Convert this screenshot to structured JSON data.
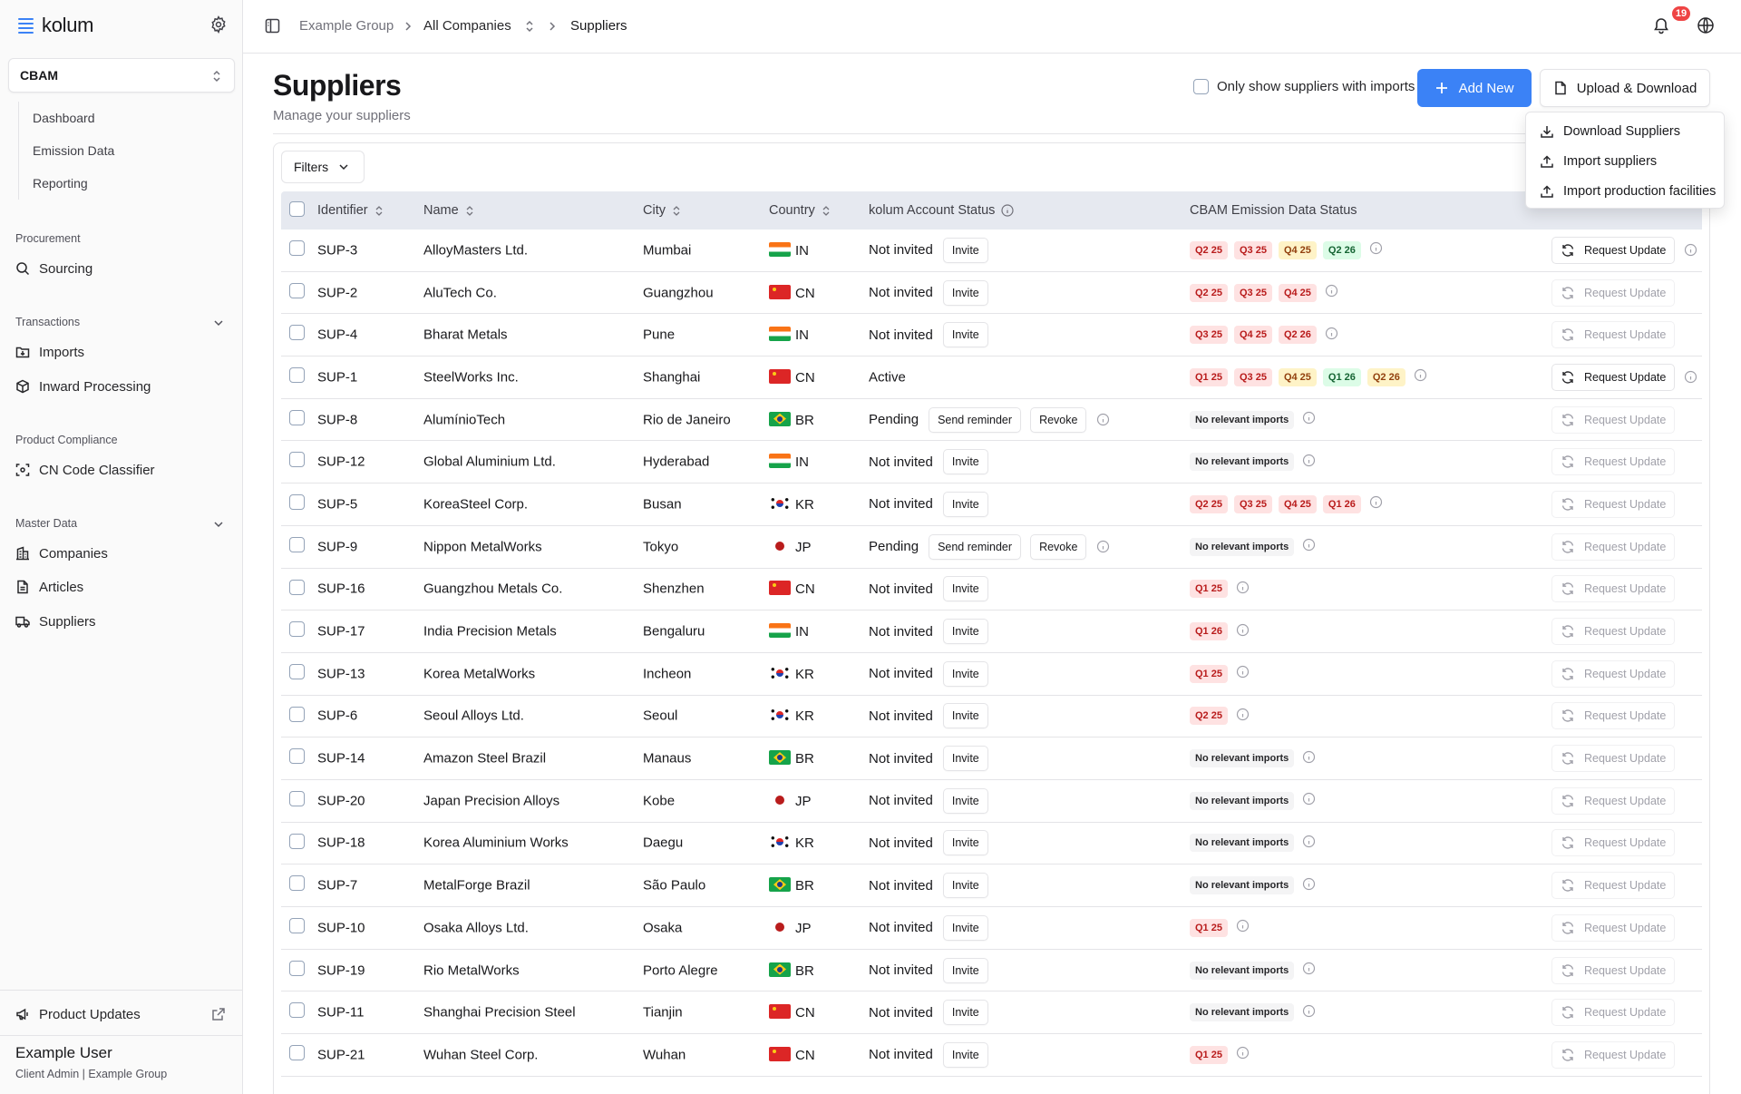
{
  "brand": "kolum",
  "module": "CBAM",
  "subnav": [
    "Dashboard",
    "Emission Data",
    "Reporting"
  ],
  "sections": {
    "procurement": {
      "label": "Procurement",
      "items": [
        "Sourcing"
      ]
    },
    "transactions": {
      "label": "Transactions",
      "items": [
        "Imports",
        "Inward Processing"
      ]
    },
    "product_compliance": {
      "label": "Product Compliance",
      "items": [
        "CN Code Classifier"
      ]
    },
    "master_data": {
      "label": "Master Data",
      "items": [
        "Companies",
        "Articles",
        "Suppliers"
      ]
    }
  },
  "product_updates": "Product Updates",
  "user": {
    "name": "Example User",
    "role": "Client Admin | Example Group"
  },
  "breadcrumb": [
    "Example Group",
    "All Companies",
    "Suppliers"
  ],
  "notifications": "19",
  "page": {
    "title": "Suppliers",
    "subtitle": "Manage your suppliers"
  },
  "only_imports_label": "Only show suppliers with imports",
  "add_new": "Add New",
  "upload_download": "Upload & Download",
  "dropdown": [
    "Download Suppliers",
    "Import suppliers",
    "Import production facilities"
  ],
  "filters": "Filters",
  "columns": {
    "identifier": "Identifier",
    "name": "Name",
    "city": "City",
    "country": "Country",
    "account": "kolum Account Status",
    "emission": "CBAM Emission Data Status"
  },
  "labels": {
    "invite": "Invite",
    "send_reminder": "Send reminder",
    "revoke": "Revoke",
    "request_update": "Request Update",
    "no_relevant": "No relevant imports"
  },
  "colors": {
    "primary": "#3b82f6",
    "badge": "#ef4444"
  },
  "rows": [
    {
      "id": "SUP-3",
      "name": "AlloyMasters Ltd.",
      "city": "Mumbai",
      "country": "IN",
      "status": "Not invited",
      "tags": [
        [
          "Q2 25",
          "red"
        ],
        [
          "Q3 25",
          "red"
        ],
        [
          "Q4 25",
          "yellow"
        ],
        [
          "Q2 26",
          "green"
        ]
      ],
      "req": true
    },
    {
      "id": "SUP-2",
      "name": "AluTech Co.",
      "city": "Guangzhou",
      "country": "CN",
      "status": "Not invited",
      "tags": [
        [
          "Q2 25",
          "red"
        ],
        [
          "Q3 25",
          "red"
        ],
        [
          "Q4 25",
          "red"
        ]
      ],
      "req": false
    },
    {
      "id": "SUP-4",
      "name": "Bharat Metals",
      "city": "Pune",
      "country": "IN",
      "status": "Not invited",
      "tags": [
        [
          "Q3 25",
          "red"
        ],
        [
          "Q4 25",
          "red"
        ],
        [
          "Q2 26",
          "red"
        ]
      ],
      "req": false
    },
    {
      "id": "SUP-1",
      "name": "SteelWorks Inc.",
      "city": "Shanghai",
      "country": "CN",
      "status": "Active",
      "tags": [
        [
          "Q1 25",
          "red"
        ],
        [
          "Q3 25",
          "red"
        ],
        [
          "Q4 25",
          "yellow"
        ],
        [
          "Q1 26",
          "green"
        ],
        [
          "Q2 26",
          "yellow"
        ]
      ],
      "req": true
    },
    {
      "id": "SUP-8",
      "name": "AlumínioTech",
      "city": "Rio de Janeiro",
      "country": "BR",
      "status": "Pending",
      "tags": [],
      "req": false
    },
    {
      "id": "SUP-12",
      "name": "Global Aluminium Ltd.",
      "city": "Hyderabad",
      "country": "IN",
      "status": "Not invited",
      "tags": [],
      "req": false
    },
    {
      "id": "SUP-5",
      "name": "KoreaSteel Corp.",
      "city": "Busan",
      "country": "KR",
      "status": "Not invited",
      "tags": [
        [
          "Q2 25",
          "red"
        ],
        [
          "Q3 25",
          "red"
        ],
        [
          "Q4 25",
          "red"
        ],
        [
          "Q1 26",
          "red"
        ]
      ],
      "req": false
    },
    {
      "id": "SUP-9",
      "name": "Nippon MetalWorks",
      "city": "Tokyo",
      "country": "JP",
      "status": "Pending",
      "tags": [],
      "req": false
    },
    {
      "id": "SUP-16",
      "name": "Guangzhou Metals Co.",
      "city": "Shenzhen",
      "country": "CN",
      "status": "Not invited",
      "tags": [
        [
          "Q1 25",
          "red"
        ]
      ],
      "req": false
    },
    {
      "id": "SUP-17",
      "name": "India Precision Metals",
      "city": "Bengaluru",
      "country": "IN",
      "status": "Not invited",
      "tags": [
        [
          "Q1 26",
          "red"
        ]
      ],
      "req": false
    },
    {
      "id": "SUP-13",
      "name": "Korea MetalWorks",
      "city": "Incheon",
      "country": "KR",
      "status": "Not invited",
      "tags": [
        [
          "Q1 25",
          "red"
        ]
      ],
      "req": false
    },
    {
      "id": "SUP-6",
      "name": "Seoul Alloys Ltd.",
      "city": "Seoul",
      "country": "KR",
      "status": "Not invited",
      "tags": [
        [
          "Q2 25",
          "red"
        ]
      ],
      "req": false
    },
    {
      "id": "SUP-14",
      "name": "Amazon Steel Brazil",
      "city": "Manaus",
      "country": "BR",
      "status": "Not invited",
      "tags": [],
      "req": false
    },
    {
      "id": "SUP-20",
      "name": "Japan Precision Alloys",
      "city": "Kobe",
      "country": "JP",
      "status": "Not invited",
      "tags": [],
      "req": false
    },
    {
      "id": "SUP-18",
      "name": "Korea Aluminium Works",
      "city": "Daegu",
      "country": "KR",
      "status": "Not invited",
      "tags": [],
      "req": false
    },
    {
      "id": "SUP-7",
      "name": "MetalForge Brazil",
      "city": "São Paulo",
      "country": "BR",
      "status": "Not invited",
      "tags": [],
      "req": false
    },
    {
      "id": "SUP-10",
      "name": "Osaka Alloys Ltd.",
      "city": "Osaka",
      "country": "JP",
      "status": "Not invited",
      "tags": [
        [
          "Q1 25",
          "red"
        ]
      ],
      "req": false
    },
    {
      "id": "SUP-19",
      "name": "Rio MetalWorks",
      "city": "Porto Alegre",
      "country": "BR",
      "status": "Not invited",
      "tags": [],
      "req": false
    },
    {
      "id": "SUP-11",
      "name": "Shanghai Precision Steel",
      "city": "Tianjin",
      "country": "CN",
      "status": "Not invited",
      "tags": [],
      "req": false
    },
    {
      "id": "SUP-21",
      "name": "Wuhan Steel Corp.",
      "city": "Wuhan",
      "country": "CN",
      "status": "Not invited",
      "tags": [
        [
          "Q1 25",
          "red"
        ]
      ],
      "req": false
    }
  ]
}
